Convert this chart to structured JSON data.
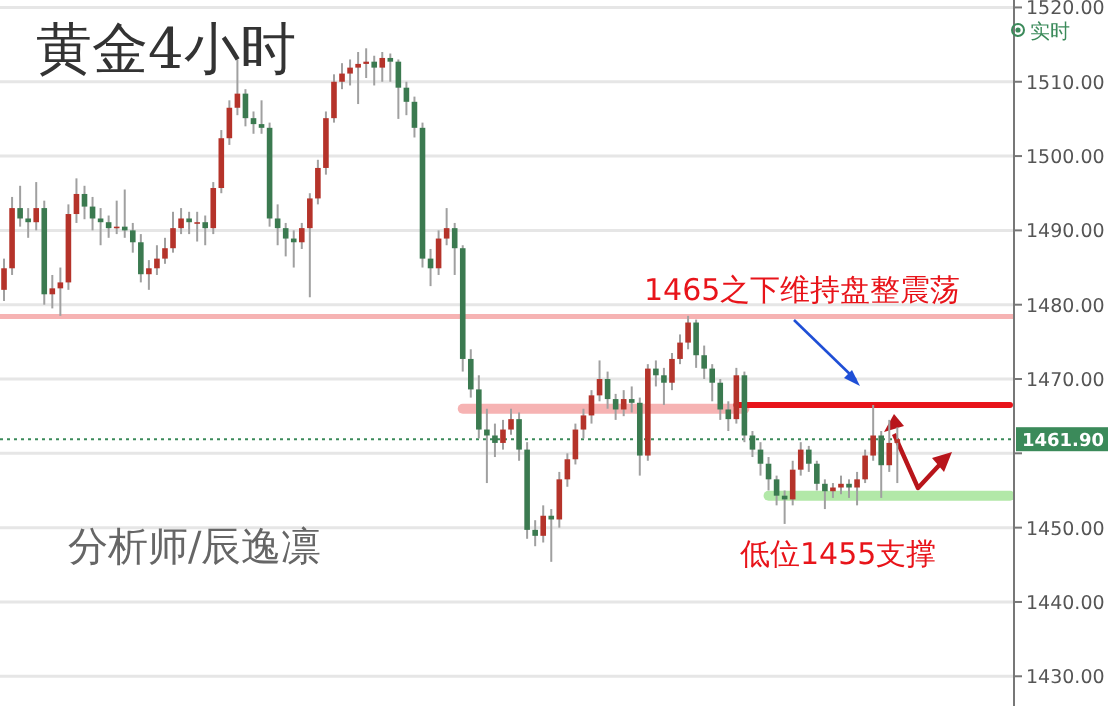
{
  "chart_data": {
    "type": "candlestick",
    "title": "黄金4小时",
    "categories": [
      null,
      null,
      null,
      null,
      null,
      null,
      null,
      null,
      null,
      null,
      null,
      null,
      null,
      null,
      null,
      null,
      null,
      null,
      null,
      null,
      null,
      null,
      null,
      null,
      null,
      null,
      null,
      null,
      null,
      null,
      null,
      null,
      null,
      null,
      null,
      null,
      null,
      null,
      null,
      null,
      null,
      null,
      null,
      null,
      null,
      null,
      null,
      null,
      null,
      null,
      null,
      null,
      null,
      null,
      null,
      null,
      null,
      null,
      null,
      null,
      null,
      null,
      null,
      null,
      null,
      null,
      null,
      null,
      null,
      null,
      null,
      null,
      null,
      null,
      null,
      null,
      null,
      null,
      null,
      null,
      null,
      null,
      null,
      null,
      null,
      null,
      null,
      null,
      null,
      null,
      null,
      null,
      null,
      null,
      null,
      null,
      null,
      null,
      null,
      null,
      null,
      null,
      null,
      null,
      null,
      null,
      null,
      null,
      null,
      null,
      null,
      null,
      null,
      null,
      null,
      null,
      null,
      null,
      null,
      null,
      null,
      null,
      null,
      null,
      null,
      null
    ],
    "colors": [
      "#b5332a",
      "#b5332a",
      "#3b7a50",
      "#3b7a50",
      "#b5332a",
      "#3b7a50",
      "#b5332a",
      "#b5332a",
      "#b5332a",
      "#b5332a",
      "#3b7a50",
      "#3b7a50",
      "#3b7a50",
      "#3b7a50",
      "#b5332a",
      "#3b7a50",
      "#3b7a50",
      "#3b7a50",
      "#b5332a",
      "#b5332a",
      "#b5332a",
      "#b5332a",
      "#b5332a",
      "#3b7a50",
      "#b5332a",
      "#3b7a50",
      "#b5332a",
      "#b5332a",
      "#b5332a",
      "#b5332a",
      "#3b7a50",
      "#3b7a50",
      "#3b7a50",
      "#3b7a50",
      "#3b7a50",
      "#3b7a50",
      "#3b7a50",
      "#b5332a",
      "#b5332a",
      "#b5332a",
      "#b5332a",
      "#b5332a",
      "#b5332a",
      "#b5332a",
      "#b5332a",
      "#b5332a",
      "#3b7a50",
      "#b5332a",
      "#3b7a50",
      "#3b7a50",
      "#3b7a50",
      "#3b7a50",
      "#3b7a50",
      "#3b7a50",
      "#b5332a",
      "#b5332a",
      "#3b7a50",
      "#3b7a50",
      "#3b7a50",
      "#3b7a50",
      "#3b7a50",
      "#3b7a50",
      "#b5332a",
      "#b5332a",
      "#3b7a50",
      "#3b7a50",
      "#3b7a50",
      "#b5332a",
      "#3b7a50",
      "#b5332a",
      "#b5332a",
      "#b5332a",
      "#b5332a",
      "#b5332a",
      "#b5332a",
      "#3b7a50",
      "#3b7a50",
      "#b5332a",
      "#3b7a50",
      "#3b7a50",
      "#b5332a",
      "#3b7a50",
      "#3b7a50",
      "#b5332a",
      "#b5332a",
      "#b5332a",
      "#3b7a50",
      "#3b7a50",
      "#3b7a50",
      "#3b7a50",
      "#3b7a50",
      "#b5332a",
      "#3b7a50",
      "#3b7a50",
      "#3b7a50",
      "#3b7a50",
      "#3b7a50",
      "#3b7a50",
      "#b5332a",
      "#b5332a",
      "#3b7a50",
      "#3b7a50",
      "#3b7a50",
      "#b5332a",
      "#b5332a",
      "#3b7a50",
      "#b5332a",
      "#b5332a",
      "#b5332a",
      "#3b7a50",
      "#b5332a",
      "#b5332a",
      null,
      null,
      null,
      null,
      null,
      null,
      null,
      null,
      null,
      null,
      null,
      null,
      null,
      null
    ],
    "ohlc": [
      [
        1482.0,
        1486.2,
        1480.5,
        1484.9
      ],
      [
        1484.9,
        1494.5,
        1484.0,
        1493.0
      ],
      [
        1493.0,
        1496.0,
        1490.5,
        1491.6
      ],
      [
        1491.6,
        1493.0,
        1489.0,
        1491.1
      ],
      [
        1491.1,
        1496.5,
        1490.0,
        1493.0
      ],
      [
        1493.0,
        1494.0,
        1480.0,
        1481.4
      ],
      [
        1481.4,
        1484.0,
        1479.5,
        1482.2
      ],
      [
        1482.2,
        1485.0,
        1478.5,
        1483.0
      ],
      [
        1483.0,
        1493.5,
        1482.0,
        1492.2
      ],
      [
        1492.2,
        1497.0,
        1491.0,
        1494.9
      ],
      [
        1494.9,
        1496.0,
        1491.5,
        1493.2
      ],
      [
        1493.2,
        1494.5,
        1490.0,
        1491.6
      ],
      [
        1491.6,
        1493.0,
        1488.0,
        1491.1
      ],
      [
        1491.1,
        1492.0,
        1489.0,
        1490.3
      ],
      [
        1490.3,
        1494.0,
        1489.5,
        1490.5
      ],
      [
        1490.5,
        1495.5,
        1489.0,
        1490.0
      ],
      [
        1490.0,
        1491.0,
        1487.0,
        1488.4
      ],
      [
        1488.4,
        1489.5,
        1483.0,
        1484.1
      ],
      [
        1484.1,
        1486.0,
        1482.0,
        1484.9
      ],
      [
        1484.9,
        1488.0,
        1484.0,
        1486.2
      ],
      [
        1486.2,
        1489.0,
        1485.5,
        1487.6
      ],
      [
        1487.6,
        1492.5,
        1487.0,
        1490.3
      ],
      [
        1490.3,
        1493.0,
        1489.5,
        1491.6
      ],
      [
        1491.6,
        1492.5,
        1489.5,
        1491.1
      ],
      [
        1491.1,
        1492.5,
        1488.5,
        1491.1
      ],
      [
        1491.1,
        1492.0,
        1488.0,
        1490.3
      ],
      [
        1490.3,
        1496.5,
        1489.5,
        1495.7
      ],
      [
        1495.7,
        1503.5,
        1495.0,
        1502.4
      ],
      [
        1502.4,
        1507.5,
        1501.5,
        1506.5
      ],
      [
        1506.5,
        1513.0,
        1505.5,
        1508.4
      ],
      [
        1508.4,
        1509.0,
        1504.0,
        1505.1
      ],
      [
        1505.1,
        1506.0,
        1503.0,
        1504.3
      ],
      [
        1504.3,
        1507.5,
        1503.0,
        1503.8
      ],
      [
        1503.8,
        1504.5,
        1490.5,
        1491.6
      ],
      [
        1491.6,
        1493.5,
        1488.0,
        1490.3
      ],
      [
        1490.3,
        1491.0,
        1486.5,
        1488.9
      ],
      [
        1488.9,
        1490.0,
        1485.0,
        1488.4
      ],
      [
        1488.4,
        1491.0,
        1487.5,
        1490.3
      ],
      [
        1490.3,
        1495.0,
        1481.0,
        1494.3
      ],
      [
        1494.3,
        1499.5,
        1493.5,
        1498.4
      ],
      [
        1498.4,
        1506.0,
        1497.5,
        1505.1
      ],
      [
        1505.1,
        1511.0,
        1504.5,
        1510.0
      ],
      [
        1510.0,
        1512.5,
        1509.0,
        1511.1
      ],
      [
        1511.1,
        1513.0,
        1509.5,
        1511.9
      ],
      [
        1511.9,
        1514.0,
        1507.0,
        1512.4
      ],
      [
        1512.4,
        1514.5,
        1510.5,
        1512.7
      ],
      [
        1512.7,
        1513.5,
        1509.5,
        1511.9
      ],
      [
        1511.9,
        1514.0,
        1510.0,
        1513.2
      ],
      [
        1513.2,
        1513.8,
        1510.0,
        1512.7
      ],
      [
        1512.7,
        1513.0,
        1505.0,
        1509.2
      ],
      [
        1509.2,
        1510.0,
        1505.5,
        1507.3
      ],
      [
        1507.3,
        1508.0,
        1502.5,
        1503.8
      ],
      [
        1503.8,
        1504.5,
        1485.0,
        1486.2
      ],
      [
        1486.2,
        1487.5,
        1482.5,
        1484.9
      ],
      [
        1484.9,
        1490.0,
        1484.0,
        1488.9
      ],
      [
        1488.9,
        1493.0,
        1488.0,
        1490.3
      ],
      [
        1490.3,
        1491.0,
        1484.0,
        1487.6
      ],
      [
        1487.6,
        1488.0,
        1471.0,
        1472.7
      ],
      [
        1472.7,
        1474.0,
        1467.5,
        1468.6
      ],
      [
        1468.6,
        1470.5,
        1462.0,
        1463.2
      ],
      [
        1463.2,
        1466.0,
        1456.0,
        1462.4
      ],
      [
        1462.4,
        1464.0,
        1459.5,
        1461.4
      ],
      [
        1461.4,
        1464.5,
        1460.5,
        1463.2
      ],
      [
        1463.2,
        1466.0,
        1462.5,
        1464.6
      ],
      [
        1464.6,
        1465.5,
        1459.0,
        1460.5
      ],
      [
        1460.5,
        1461.5,
        1448.5,
        1449.7
      ],
      [
        1449.7,
        1451.0,
        1447.5,
        1448.9
      ],
      [
        1448.9,
        1453.0,
        1448.0,
        1451.6
      ],
      [
        1451.6,
        1452.5,
        1445.4,
        1451.1
      ],
      [
        1451.1,
        1457.5,
        1450.0,
        1456.5
      ],
      [
        1456.5,
        1460.0,
        1455.5,
        1459.2
      ],
      [
        1459.2,
        1464.0,
        1458.5,
        1463.2
      ],
      [
        1463.2,
        1466.0,
        1462.0,
        1465.1
      ],
      [
        1465.1,
        1468.5,
        1464.0,
        1467.8
      ],
      [
        1467.8,
        1472.5,
        1467.0,
        1470.0
      ],
      [
        1470.0,
        1471.0,
        1466.0,
        1467.3
      ],
      [
        1467.3,
        1468.0,
        1464.5,
        1465.9
      ],
      [
        1465.9,
        1468.5,
        1465.0,
        1467.3
      ],
      [
        1467.3,
        1469.0,
        1465.5,
        1466.8
      ],
      [
        1466.8,
        1467.5,
        1457.0,
        1459.7
      ],
      [
        1459.7,
        1472.0,
        1459.0,
        1471.4
      ],
      [
        1471.4,
        1472.5,
        1469.0,
        1470.5
      ],
      [
        1470.5,
        1471.5,
        1466.5,
        1469.5
      ],
      [
        1469.5,
        1473.5,
        1468.5,
        1472.7
      ],
      [
        1472.7,
        1476.0,
        1472.0,
        1474.9
      ],
      [
        1474.9,
        1478.5,
        1474.0,
        1477.6
      ],
      [
        1477.6,
        1478.0,
        1471.5,
        1473.2
      ],
      [
        1473.2,
        1474.5,
        1470.0,
        1471.4
      ],
      [
        1471.4,
        1472.0,
        1467.0,
        1469.5
      ],
      [
        1469.5,
        1470.0,
        1464.5,
        1465.9
      ],
      [
        1465.9,
        1467.0,
        1463.0,
        1464.6
      ],
      [
        1464.6,
        1471.5,
        1464.0,
        1470.5
      ],
      [
        1470.5,
        1471.0,
        1461.5,
        1462.4
      ],
      [
        1462.4,
        1463.0,
        1459.5,
        1460.5
      ],
      [
        1460.5,
        1461.5,
        1457.0,
        1458.6
      ],
      [
        1458.6,
        1459.5,
        1455.0,
        1456.5
      ],
      [
        1456.5,
        1457.0,
        1453.0,
        1454.3
      ],
      [
        1454.3,
        1455.0,
        1450.5,
        1453.8
      ],
      [
        1453.8,
        1459.0,
        1453.0,
        1457.8
      ],
      [
        1457.8,
        1461.5,
        1457.0,
        1460.5
      ],
      [
        1460.5,
        1461.0,
        1457.5,
        1458.6
      ],
      [
        1458.6,
        1459.0,
        1455.0,
        1455.9
      ],
      [
        1455.9,
        1456.5,
        1452.5,
        1454.9
      ],
      [
        1454.9,
        1456.0,
        1454.0,
        1455.4
      ],
      [
        1455.4,
        1457.0,
        1454.5,
        1455.9
      ],
      [
        1455.9,
        1456.5,
        1454.0,
        1455.4
      ],
      [
        1455.4,
        1457.5,
        1453.0,
        1456.5
      ],
      [
        1456.5,
        1460.5,
        1456.0,
        1459.7
      ],
      [
        1459.7,
        1466.5,
        1459.0,
        1462.4
      ],
      [
        1462.4,
        1463.0,
        1454.0,
        1458.4
      ],
      [
        1458.4,
        1464.5,
        1457.5,
        1461.4
      ],
      [
        1461.4,
        1463.5,
        1456.0,
        1461.9
      ],
      null,
      null,
      null,
      null,
      null,
      null,
      null,
      null,
      null,
      null,
      null,
      null,
      null,
      null
    ],
    "series": [
      {
        "type": "line",
        "color": "#f6b3b3",
        "values": [
          null,
          null,
          null,
          null,
          null,
          null,
          null,
          null,
          null,
          null,
          null,
          null,
          null,
          null,
          null,
          null,
          null,
          null,
          null,
          null,
          null,
          null,
          null,
          null,
          null,
          null,
          null,
          null,
          null,
          null,
          null,
          null,
          null,
          null,
          null,
          null,
          null,
          null,
          null,
          null,
          null,
          null,
          null,
          null,
          null,
          null,
          null,
          null,
          null,
          null,
          null,
          null,
          null,
          null,
          null,
          null,
          null,
          1466,
          1466,
          1466,
          1466,
          1466,
          1466,
          1466,
          1466,
          1466,
          1466,
          1466,
          1466,
          1466,
          1466,
          1466,
          1466,
          1466,
          1466,
          1466,
          1466,
          1466,
          1466,
          1466,
          1466,
          1466,
          1466,
          1466,
          1466,
          1466,
          1466,
          1466,
          1466,
          1466,
          1466,
          1466,
          1466,
          null,
          null,
          null,
          null,
          null,
          null,
          null,
          null,
          null,
          null,
          null,
          null,
          null,
          null,
          null,
          null,
          null,
          null,
          null,
          null,
          null,
          null,
          null,
          null,
          null,
          null,
          null,
          null,
          null,
          null,
          null,
          null,
          null
        ]
      },
      {
        "type": "line",
        "color": "#e8141a",
        "values": [
          null,
          null,
          null,
          null,
          null,
          null,
          null,
          null,
          null,
          null,
          null,
          null,
          null,
          null,
          null,
          null,
          null,
          null,
          null,
          null,
          null,
          null,
          null,
          null,
          null,
          null,
          null,
          null,
          null,
          null,
          null,
          null,
          null,
          null,
          null,
          null,
          null,
          null,
          null,
          null,
          null,
          null,
          null,
          null,
          null,
          null,
          null,
          null,
          null,
          null,
          null,
          null,
          null,
          null,
          null,
          null,
          null,
          null,
          null,
          null,
          null,
          null,
          null,
          null,
          null,
          null,
          null,
          null,
          null,
          null,
          null,
          null,
          null,
          null,
          null,
          null,
          null,
          null,
          null,
          null,
          null,
          null,
          null,
          null,
          null,
          null,
          null,
          null,
          null,
          null,
          null,
          1466.5,
          1466.5,
          1466.5,
          1466.5,
          1466.5,
          1466.5,
          1466.5,
          1466.5,
          1466.5,
          1466.5,
          1466.5,
          1466.5,
          1466.5,
          1466.5,
          1466.5,
          1466.5,
          1466.5,
          1466.5,
          1466.5,
          1466.5,
          1466.5,
          1466.5,
          1466.5,
          1466.5,
          1466.5,
          1466.5,
          1466.5,
          1466.5,
          1466.5,
          1466.5,
          1466.5,
          1466.5,
          1466.5,
          1466.5,
          1466.5
        ]
      },
      {
        "type": "line",
        "color": "#b2e8a8",
        "values": [
          null,
          null,
          null,
          null,
          null,
          null,
          null,
          null,
          null,
          null,
          null,
          null,
          null,
          null,
          null,
          null,
          null,
          null,
          null,
          null,
          null,
          null,
          null,
          null,
          null,
          null,
          null,
          null,
          null,
          null,
          null,
          null,
          null,
          null,
          null,
          null,
          null,
          null,
          null,
          null,
          null,
          null,
          null,
          null,
          null,
          null,
          null,
          null,
          null,
          null,
          null,
          null,
          null,
          null,
          null,
          null,
          null,
          null,
          null,
          null,
          null,
          null,
          null,
          null,
          null,
          null,
          null,
          null,
          null,
          null,
          null,
          null,
          null,
          null,
          null,
          null,
          null,
          null,
          null,
          null,
          null,
          null,
          null,
          null,
          null,
          null,
          null,
          null,
          null,
          null,
          null,
          null,
          null,
          null,
          null,
          1454.3,
          1454.3,
          1454.3,
          1454.3,
          1454.3,
          1454.3,
          1454.3,
          1454.3,
          1454.3,
          1454.3,
          1454.3,
          1454.3,
          1454.3,
          1454.3,
          1454.3,
          1454.3,
          1454.3,
          1454.3,
          1454.3,
          1454.3,
          1454.3,
          1454.3,
          1454.3,
          1454.3,
          1454.3,
          1454.3,
          1454.3,
          1454.3,
          1454.3,
          1454.3,
          1454.3
        ]
      }
    ],
    "ref_lines": [
      {
        "axis": "y",
        "value": 1478.4,
        "color": "#f6b3b3"
      },
      {
        "axis": "y",
        "value": 1461.9,
        "label": "1461.90",
        "color": "#3b8a5a",
        "line_style": "dotted"
      }
    ],
    "ylim": [
      1426,
      1521
    ],
    "yticks": [
      {
        "value": 1430,
        "label": "1430.00"
      },
      {
        "value": 1440,
        "label": "1440.00"
      },
      {
        "value": 1450,
        "label": "1450.00"
      },
      {
        "value": 1460,
        "label": null
      },
      {
        "value": 1470,
        "label": "1470.00"
      },
      {
        "value": 1480,
        "label": "1480.00"
      },
      {
        "value": 1490,
        "label": "1490.00"
      },
      {
        "value": 1500,
        "label": "1500.00"
      },
      {
        "value": 1510,
        "label": "1510.00"
      },
      {
        "value": 1520,
        "label": "1520.00"
      }
    ],
    "grid": "y",
    "annotations": [
      "实时",
      "1465之下维持盘整震荡",
      "低位1455支撑",
      "分析师/辰逸凛"
    ]
  }
}
